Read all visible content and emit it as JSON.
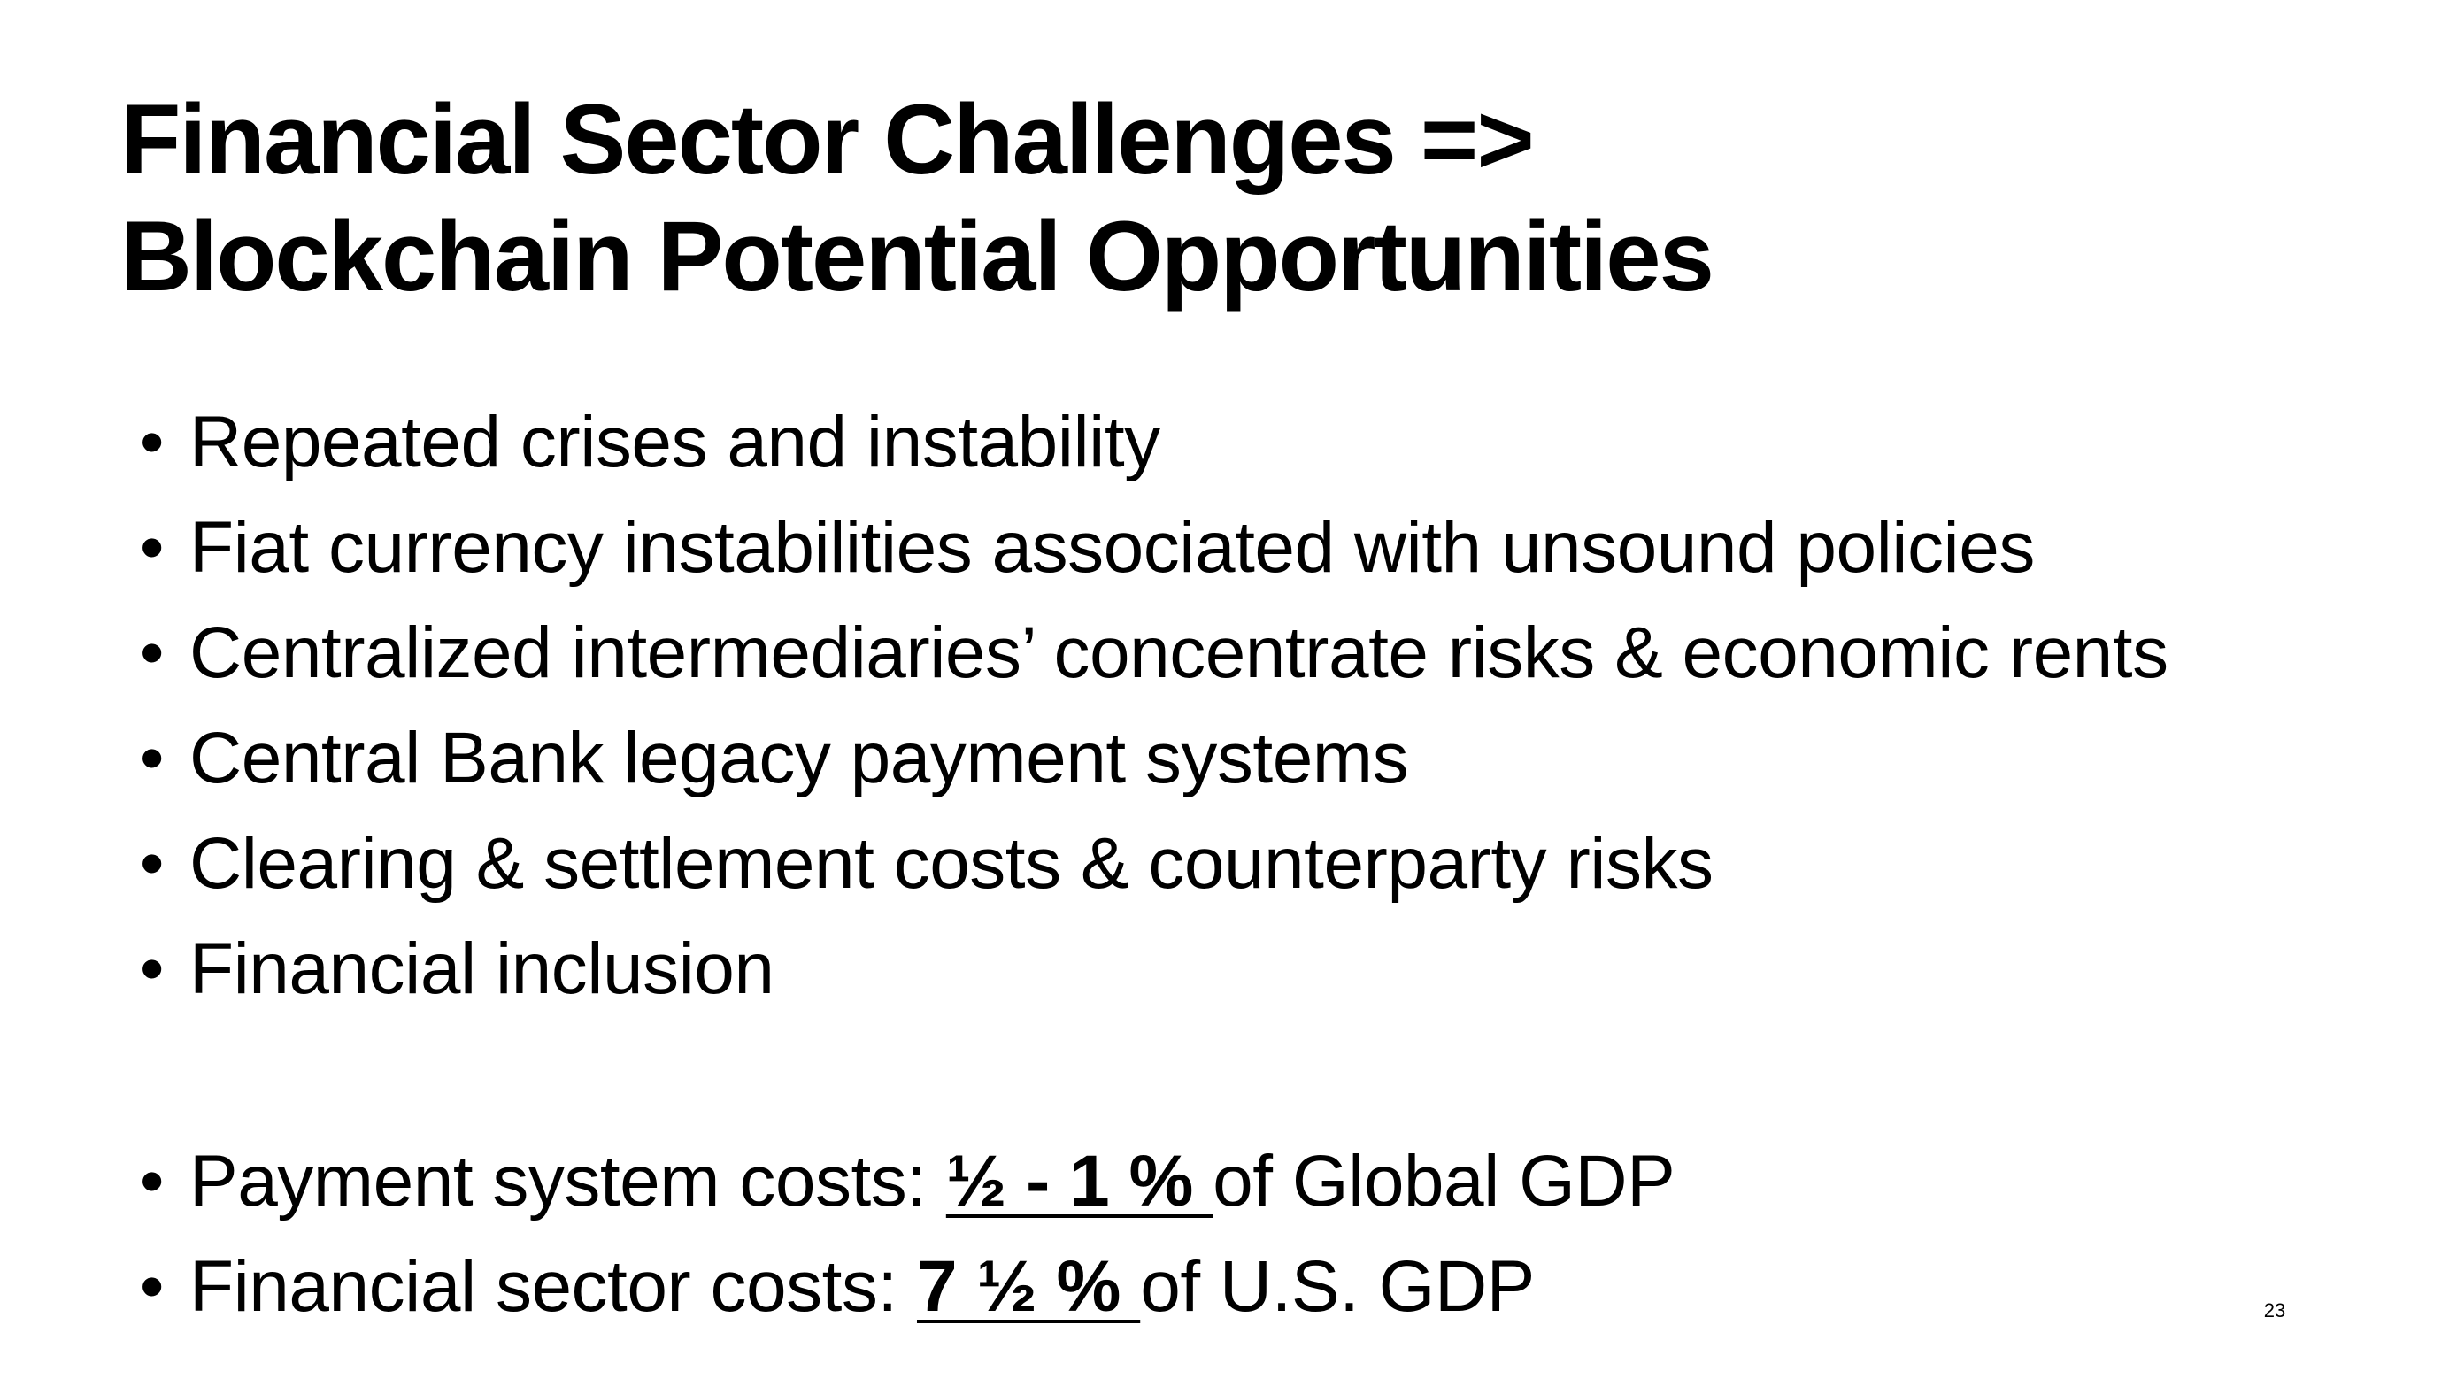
{
  "slide": {
    "title_line1": "Financial Sector Challenges =>",
    "title_line2": "Blockchain Potential Opportunities",
    "bullets": [
      "Repeated crises and instability",
      "Fiat currency instabilities associated with unsound policies",
      "Centralized intermediaries’ concentrate risks & economic rents",
      "Central Bank legacy payment systems",
      "Clearing & settlement costs & counterparty risks",
      "Financial inclusion"
    ],
    "cost_bullets": [
      {
        "prefix": "Payment system costs: ",
        "emphasis": "½ - 1 % ",
        "suffix": "of Global GDP"
      },
      {
        "prefix": "Financial sector costs: ",
        "emphasis": "7 ½ % ",
        "suffix": "of U.S. GDP"
      }
    ],
    "slide_number": "23"
  }
}
